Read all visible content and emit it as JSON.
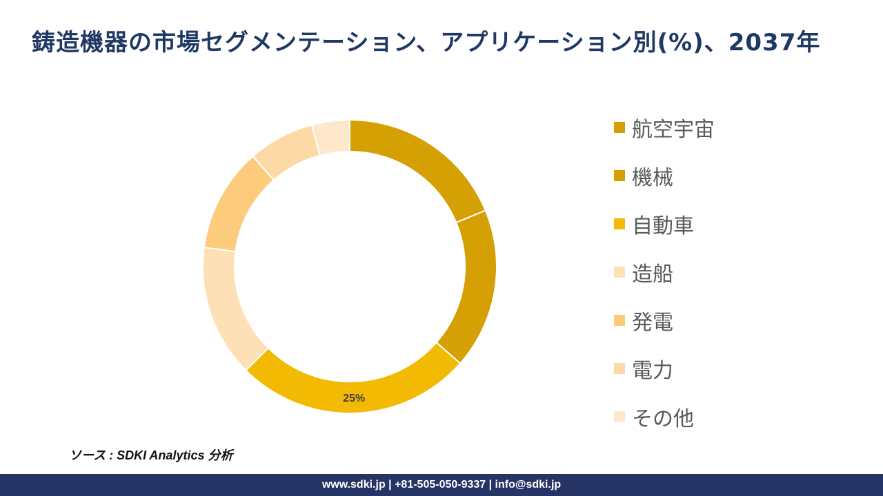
{
  "title": "鋳造機器の市場セグメンテーション、アプリケーション別(%)、2037年",
  "chart_data": {
    "type": "pie",
    "title": "鋳造機器の市場セグメンテーション、アプリケーション別(%)、2037年",
    "categories": [
      "航空宇宙",
      "機械",
      "自動車",
      "造船",
      "発電",
      "電力",
      "その他"
    ],
    "values": [
      18,
      17,
      25,
      14,
      11,
      7,
      4
    ],
    "colors": [
      "#d4a003",
      "#d4a003",
      "#f2ba02",
      "#fde0b6",
      "#fdcb7c",
      "#fdd9a5",
      "#fee8cc"
    ],
    "data_labels": [
      "",
      "",
      "25%",
      "",
      "",
      "",
      ""
    ],
    "legend_position": "right",
    "donut": true
  },
  "source": "ソース : SDKI Analytics 分析",
  "footer": "www.sdki.jp | +81-505-050-9337 | info@sdki.jp"
}
